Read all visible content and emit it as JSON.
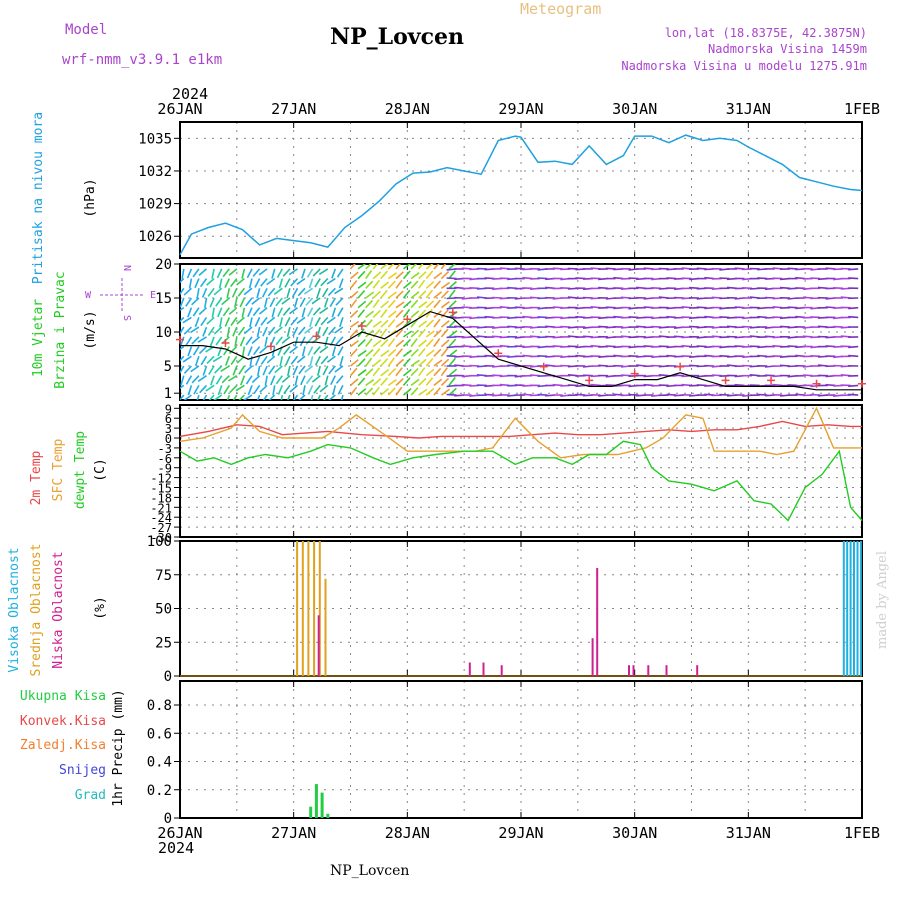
{
  "header": {
    "model_label": "Model",
    "model_name": "wrf-nmm_v3.9.1  e1km",
    "station": "NP_Lovcen",
    "meteogram_label": "Meteogram",
    "lonlat": "lon,lat (18.8375E, 42.3875N)",
    "elevation": "Nadmorska Visina 1459m",
    "model_elevation": "Nadmorska Visina u modelu 1275.91m",
    "footer": "NP_Lovcen",
    "credit": "made by Angel",
    "year": "2024"
  },
  "colors": {
    "pressure": "#1fa0e0",
    "wind_label": "#22cc22",
    "wind_dir": "#aa44cc",
    "temp2m": "#e84848",
    "sfc_temp": "#e8a030",
    "dewpt": "#22cc22",
    "high_cloud": "#1fb0e0",
    "mid_cloud": "#e0a020",
    "low_cloud": "#d02090",
    "precip_total": "#22cc44",
    "precip_conv": "#e84848",
    "precip_freez": "#f08030",
    "precip_snow": "#4444dd",
    "precip_hail": "#22bbbb",
    "model": "#aa44cc",
    "meteogram": "#e8c080"
  },
  "chart_data": [
    {
      "type": "line",
      "panel": "pressure",
      "ylabel": "Pritisak na nivou mora",
      "unit": "(hPa)",
      "x_ticks": [
        "26JAN",
        "27JAN",
        "28JAN",
        "29JAN",
        "30JAN",
        "31JAN",
        "1FEB"
      ],
      "y_ticks": [
        1026,
        1029,
        1032,
        1035
      ],
      "ylim": [
        1024,
        1036.5
      ],
      "grid": true,
      "series": [
        {
          "x": [
            0,
            0.1,
            0.25,
            0.4,
            0.55,
            0.7,
            0.85,
            1.0,
            1.15,
            1.3,
            1.45,
            1.6,
            1.75,
            1.9,
            2.05,
            2.2,
            2.35,
            2.5,
            2.65,
            2.8,
            2.95,
            3.0,
            3.15,
            3.3,
            3.45,
            3.6,
            3.75,
            3.9,
            4.0,
            4.15,
            4.3,
            4.45,
            4.6,
            4.75,
            4.9,
            5.0,
            5.15,
            5.3,
            5.45,
            5.6,
            5.75,
            5.9,
            6.0
          ],
          "values": [
            1024.3,
            1026.2,
            1026.8,
            1027.2,
            1026.6,
            1025.2,
            1025.8,
            1025.6,
            1025.4,
            1025.0,
            1026.8,
            1027.9,
            1029.2,
            1030.8,
            1031.8,
            1031.9,
            1032.3,
            1032.0,
            1031.7,
            1034.8,
            1035.2,
            1035.1,
            1032.8,
            1032.9,
            1032.6,
            1034.3,
            1032.6,
            1033.4,
            1035.2,
            1035.2,
            1034.6,
            1035.3,
            1034.8,
            1035.0,
            1034.8,
            1034.2,
            1033.4,
            1032.6,
            1031.4,
            1031.0,
            1030.6,
            1030.3,
            1030.2
          ]
        }
      ]
    },
    {
      "type": "barb",
      "panel": "wind",
      "ylabel_1": "10m Vjetar",
      "ylabel_2": "Brzina i Pravac",
      "unit": "(m/s)",
      "direction_legend": [
        "N",
        "W",
        "E",
        "S"
      ],
      "y_ticks": [
        1,
        5,
        10,
        15,
        20
      ],
      "ylim": [
        0,
        20
      ],
      "grid": true,
      "series": [
        {
          "name": "speed",
          "x": [
            0,
            0.2,
            0.4,
            0.6,
            0.8,
            1.0,
            1.2,
            1.4,
            1.6,
            1.8,
            2.0,
            2.2,
            2.4,
            2.6,
            2.8,
            3.0,
            3.2,
            3.4,
            3.6,
            3.8,
            4.0,
            4.2,
            4.4,
            4.6,
            4.8,
            5.0,
            5.2,
            5.4,
            5.6,
            5.8,
            6.0
          ],
          "values": [
            8,
            8,
            7.5,
            6,
            7,
            8.5,
            8.5,
            8,
            10,
            9,
            11,
            13,
            12,
            9,
            6,
            5,
            4,
            3,
            2,
            2,
            3,
            3,
            4,
            3,
            2,
            2,
            2,
            2,
            1.5,
            1.5,
            1.5
          ]
        }
      ]
    },
    {
      "type": "line",
      "panel": "temperature",
      "ylabel_1": "2m Temp",
      "ylabel_2": "SFC Temp",
      "ylabel_3": "dewpt Temp",
      "unit": "(C)",
      "y_ticks": [
        -30,
        -27,
        -24,
        -21,
        -18,
        -15,
        -12,
        -9,
        -6,
        -3,
        0,
        3,
        6,
        9
      ],
      "ylim": [
        -30,
        10
      ],
      "grid": true,
      "series": [
        {
          "name": "2m Temp",
          "x": [
            0,
            0.25,
            0.5,
            0.7,
            0.9,
            1.1,
            1.3,
            1.6,
            1.9,
            2.1,
            2.3,
            2.5,
            2.7,
            2.9,
            3.1,
            3.3,
            3.5,
            3.7,
            3.9,
            4.1,
            4.3,
            4.5,
            4.7,
            4.9,
            5.1,
            5.3,
            5.5,
            5.7,
            5.9,
            6.0
          ],
          "values": [
            0.5,
            2,
            4,
            3.5,
            1,
            1.5,
            2,
            1,
            0.5,
            0,
            0.5,
            0.5,
            0.5,
            0.5,
            1,
            1.5,
            1,
            1,
            1.5,
            2,
            2.5,
            2,
            2.5,
            2.5,
            3.5,
            5,
            3.5,
            4,
            3.5,
            3.5
          ]
        },
        {
          "name": "SFC Temp",
          "x": [
            0,
            0.2,
            0.45,
            0.55,
            0.7,
            0.9,
            1.1,
            1.25,
            1.4,
            1.55,
            1.8,
            2.0,
            2.25,
            2.45,
            2.6,
            2.75,
            2.95,
            3.15,
            3.35,
            3.55,
            3.7,
            3.85,
            4.1,
            4.25,
            4.45,
            4.6,
            4.7,
            4.9,
            5.1,
            5.25,
            5.4,
            5.6,
            5.75,
            5.9,
            6.0
          ],
          "values": [
            -1,
            0,
            3,
            7,
            2,
            0,
            0,
            0,
            3,
            7,
            1,
            -4,
            -4,
            -4,
            -4,
            -3,
            6,
            -1,
            -6,
            -5,
            -5,
            -5,
            -3,
            0,
            7,
            6,
            -4,
            -4,
            -4,
            -5,
            -4,
            9,
            -3,
            -3,
            -3
          ]
        },
        {
          "name": "dewpt Temp",
          "x": [
            0,
            0.15,
            0.3,
            0.45,
            0.6,
            0.75,
            0.95,
            1.15,
            1.3,
            1.5,
            1.7,
            1.85,
            2.05,
            2.25,
            2.5,
            2.75,
            2.95,
            3.1,
            3.3,
            3.45,
            3.6,
            3.75,
            3.9,
            4.05,
            4.15,
            4.3,
            4.5,
            4.7,
            4.9,
            5.05,
            5.2,
            5.35,
            5.5,
            5.65,
            5.8,
            5.9,
            6.0
          ],
          "values": [
            -4,
            -7,
            -6,
            -8,
            -6,
            -5,
            -6,
            -4,
            -2,
            -3,
            -6,
            -8,
            -6,
            -5,
            -4,
            -4,
            -8,
            -6,
            -6,
            -8,
            -5,
            -5,
            -1,
            -2,
            -9,
            -13,
            -14,
            -16,
            -13,
            -19,
            -20,
            -25,
            -15,
            -11,
            -4,
            -21,
            -25
          ]
        }
      ]
    },
    {
      "type": "bar",
      "panel": "cloud",
      "ylabel_1": "Visoka Oblacnost",
      "ylabel_2": "Srednja Oblacnost",
      "ylabel_3": "Niska Oblacnost",
      "unit": "(%)",
      "y_ticks": [
        0,
        25,
        50,
        75,
        100
      ],
      "ylim": [
        0,
        100
      ],
      "grid": true,
      "series": [
        {
          "name": "Srednja Oblacnost",
          "x": [
            1.03,
            1.08,
            1.13,
            1.18,
            1.23,
            1.28
          ],
          "values": [
            100,
            100,
            100,
            100,
            100,
            72
          ]
        },
        {
          "name": "Niska Oblacnost",
          "x": [
            1.22,
            2.55,
            2.67,
            2.83,
            3.63,
            3.67,
            3.95,
            3.99,
            4.12,
            4.28,
            4.55
          ],
          "values": [
            45,
            10,
            10,
            8,
            28,
            80,
            8,
            8,
            8,
            8,
            8
          ]
        },
        {
          "name": "Visoka Oblacnost",
          "x": [
            5.84,
            5.87,
            5.9,
            5.93,
            5.96,
            5.99
          ],
          "values": [
            100,
            100,
            100,
            100,
            100,
            100
          ]
        }
      ]
    },
    {
      "type": "bar",
      "panel": "precip",
      "ylabel": "1hr Precip (mm)",
      "legend": [
        "Ukupna Kisa",
        "Konvek.Kisa",
        "Zaledj.Kisa",
        "Snijeg",
        "Grad"
      ],
      "y_ticks": [
        0,
        0.2,
        0.4,
        0.6,
        0.8
      ],
      "ylim": [
        0,
        0.97
      ],
      "grid": true,
      "x_ticks": [
        "26JAN",
        "27JAN",
        "28JAN",
        "29JAN",
        "30JAN",
        "31JAN",
        "1FEB"
      ],
      "series": [
        {
          "name": "Ukupna Kisa",
          "x": [
            1.15,
            1.2,
            1.25,
            1.3
          ],
          "values": [
            0.08,
            0.24,
            0.18,
            0.03
          ]
        }
      ]
    }
  ]
}
